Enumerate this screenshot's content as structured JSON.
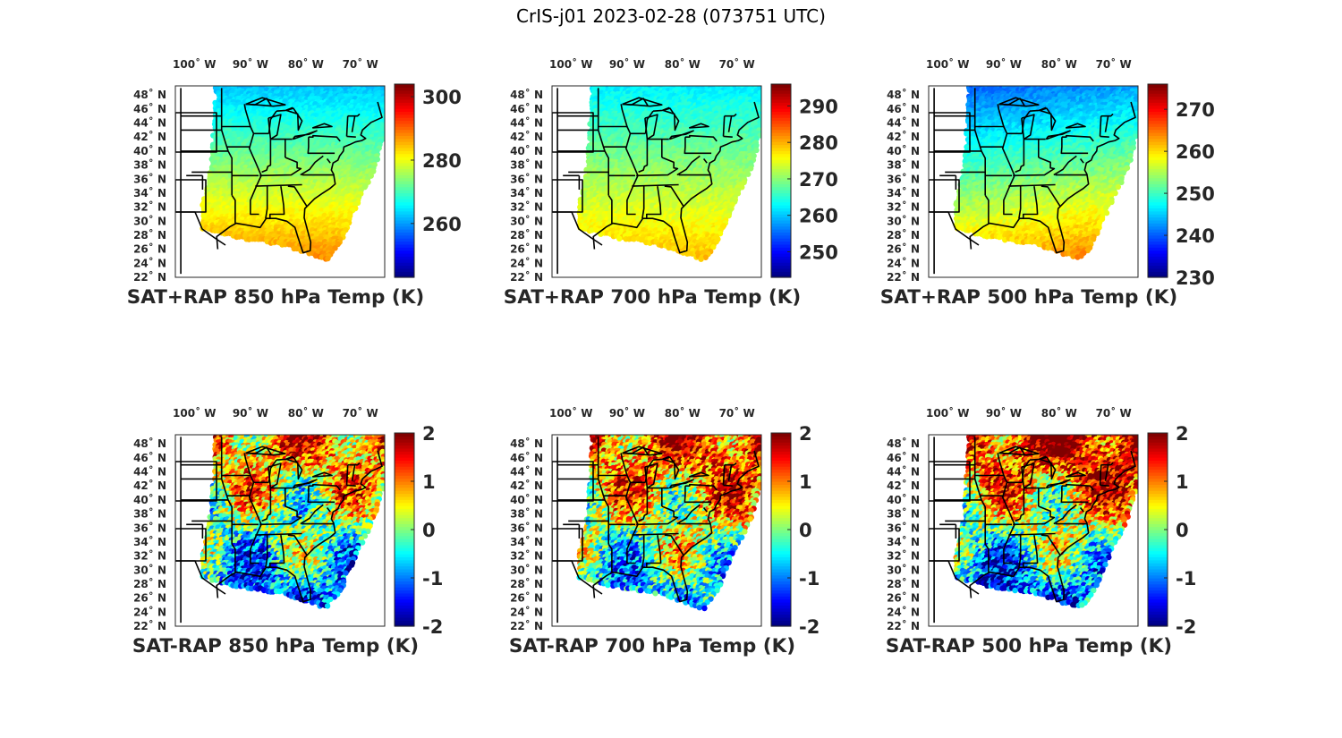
{
  "figure": {
    "title": "CrIS-j01 2023-02-28 (073751 UTC)"
  },
  "map": {
    "lon_ticks": [
      "100° W",
      "90° W",
      "80° W",
      "70° W"
    ],
    "lat_ticks": [
      "48° N",
      "46° N",
      "44° N",
      "42° N",
      "40° N",
      "38° N",
      "36° N",
      "34° N",
      "32° N",
      "30° N",
      "28° N",
      "26° N",
      "24° N",
      "22° N"
    ]
  },
  "colormap": "jet",
  "panels": [
    {
      "id": "p1",
      "caption": "SAT+RAP 850 hPa Temp (K)",
      "kind": "abs",
      "colorbar": {
        "ticks": [
          "300",
          "280",
          "260"
        ],
        "range": [
          243,
          304
        ]
      },
      "field": {
        "north": 262,
        "south": 289,
        "east_bonus": 0
      }
    },
    {
      "id": "p2",
      "caption": "SAT+RAP 700 hPa Temp (K)",
      "kind": "abs",
      "colorbar": {
        "ticks": [
          "290",
          "280",
          "270",
          "260",
          "250"
        ],
        "range": [
          243,
          296
        ]
      },
      "field": {
        "north": 262,
        "south": 280,
        "east_bonus": 0
      }
    },
    {
      "id": "p3",
      "caption": "SAT+RAP 500 hPa Temp (K)",
      "kind": "abs",
      "colorbar": {
        "ticks": [
          "270",
          "260",
          "250",
          "240",
          "230"
        ],
        "range": [
          230,
          276
        ]
      },
      "field": {
        "north": 239,
        "south": 262,
        "east_bonus": 4
      }
    },
    {
      "id": "p4",
      "caption": "SAT-RAP 850 hPa Temp (K)",
      "kind": "diff",
      "colorbar": {
        "ticks": [
          "2",
          "1",
          "0",
          "-1",
          "-2"
        ],
        "range": [
          -2,
          2
        ]
      },
      "field": {
        "north": 1.0,
        "south": -1.4,
        "east_bonus": 0.3
      }
    },
    {
      "id": "p5",
      "caption": "SAT-RAP 700 hPa Temp (K)",
      "kind": "diff",
      "colorbar": {
        "ticks": [
          "2",
          "1",
          "0",
          "-1",
          "-2"
        ],
        "range": [
          -2,
          2
        ]
      },
      "field": {
        "north": 1.1,
        "south": -1.2,
        "east_bonus": 0.6
      }
    },
    {
      "id": "p6",
      "caption": "SAT-RAP 500 hPa Temp (K)",
      "kind": "diff",
      "colorbar": {
        "ticks": [
          "2",
          "1",
          "0",
          "-1",
          "-2"
        ],
        "range": [
          -2,
          2
        ]
      },
      "field": {
        "north": 1.4,
        "south": -1.9,
        "east_bonus": 0.8
      }
    }
  ]
}
